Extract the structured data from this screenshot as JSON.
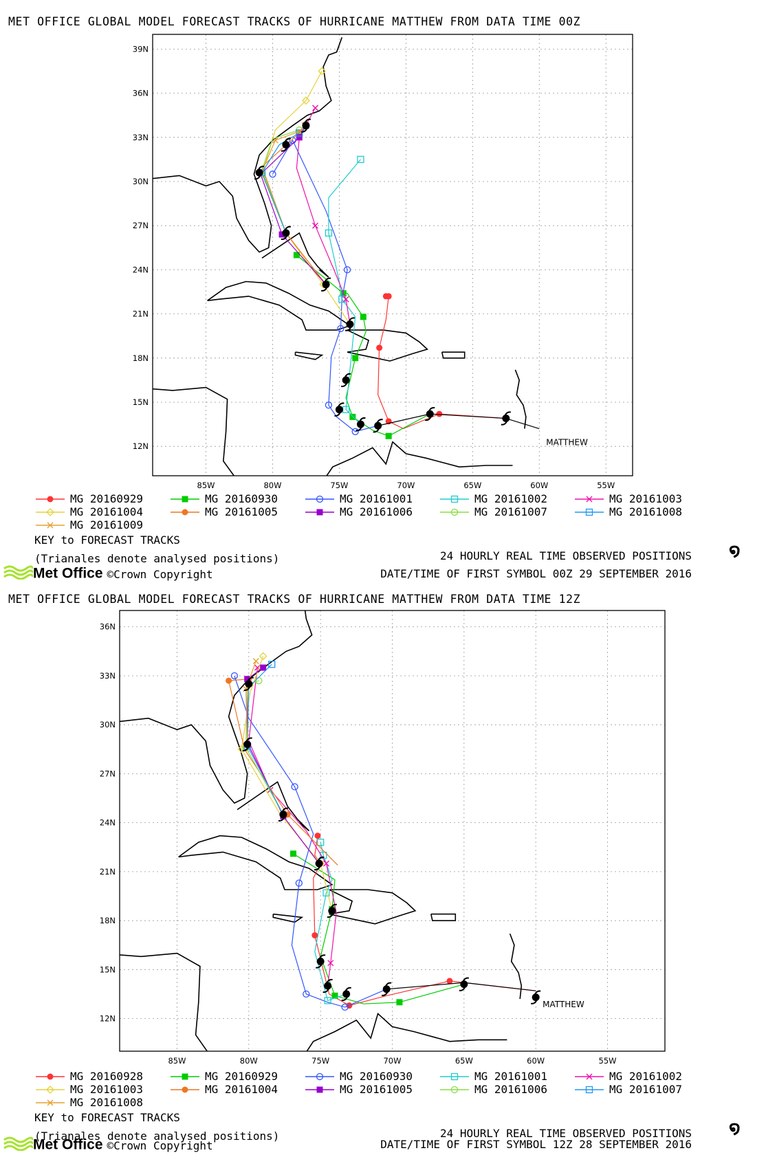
{
  "charts": [
    {
      "title": "MET OFFICE GLOBAL MODEL FORECAST TRACKS OF HURRICANE MATTHEW FROM DATA TIME 00Z",
      "key_label": "KEY to FORECAST TRACKS",
      "triangles_note": "(Trianales denote analysed positions)",
      "observed_label": "24 HOURLY REAL TIME OBSERVED POSITIONS",
      "first_symbol": "DATE/TIME OF FIRST SYMBOL 00Z 29 SEPTEMBER 2016",
      "logo_text": "Met Office",
      "copyright": "©Crown Copyright",
      "storm_label": "MATTHEW",
      "legend": [
        "MG 20160929",
        "MG 20160930",
        "MG 20161001",
        "MG 20161002",
        "MG 20161003",
        "MG 20161004",
        "MG 20161005",
        "MG 20161006",
        "MG 20161007",
        "MG 20161008",
        "MG 20161009"
      ]
    },
    {
      "title": "MET OFFICE GLOBAL MODEL FORECAST TRACKS OF HURRICANE MATTHEW FROM DATA TIME 12Z",
      "key_label": "KEY to FORECAST TRACKS",
      "triangles_note": "(Trianales denote analysed positions)",
      "observed_label": "24 HOURLY REAL TIME OBSERVED POSITIONS",
      "first_symbol": "DATE/TIME OF FIRST SYMBOL 12Z 28 SEPTEMBER 2016",
      "logo_text": "Met Office",
      "copyright": "©Crown Copyright",
      "storm_label": "MATTHEW",
      "legend": [
        "MG 20160928",
        "MG 20160929",
        "MG 20160930",
        "MG 20161001",
        "MG 20161002",
        "MG 20161003",
        "MG 20161004",
        "MG 20161005",
        "MG 20161006",
        "MG 20161007",
        "MG 20161008"
      ]
    }
  ],
  "legend_styles": [
    {
      "color": "#ff3333",
      "marker": "circle-filled"
    },
    {
      "color": "#00cc00",
      "marker": "square-filled"
    },
    {
      "color": "#3355ff",
      "marker": "circle-open"
    },
    {
      "color": "#22cccc",
      "marker": "square-open"
    },
    {
      "color": "#ee11aa",
      "marker": "x"
    },
    {
      "color": "#e6d23a",
      "marker": "diamond"
    },
    {
      "color": "#ee7722",
      "marker": "circle-filled"
    },
    {
      "color": "#9900cc",
      "marker": "square-filled"
    },
    {
      "color": "#88dd44",
      "marker": "circle-open"
    },
    {
      "color": "#2299ee",
      "marker": "square-open"
    },
    {
      "color": "#e6a030",
      "marker": "x"
    }
  ],
  "chart_data": [
    {
      "type": "scatter",
      "title": "MET OFFICE GLOBAL MODEL FORECAST TRACKS OF HURRICANE MATTHEW FROM DATA TIME 00Z",
      "xlabel": "",
      "ylabel": "",
      "xlim": [
        -89,
        -53
      ],
      "ylim": [
        10,
        40
      ],
      "x_ticks": [
        "85W",
        "80W",
        "75W",
        "70W",
        "65W",
        "60W",
        "55W"
      ],
      "y_ticks": [
        "12N",
        "15N",
        "18N",
        "21N",
        "24N",
        "27N",
        "30N",
        "33N",
        "36N",
        "39N"
      ],
      "grid": true,
      "observed": {
        "lon": [
          -62.5,
          -68.2,
          -72.1,
          -73.4,
          -75,
          -74.5,
          -74.2,
          -76,
          -79,
          -81,
          -79,
          -77.5
        ],
        "lat": [
          13.9,
          14.2,
          13.4,
          13.5,
          14.5,
          16.5,
          20.3,
          23,
          26.5,
          30.6,
          32.5,
          33.8
        ]
      },
      "analysed_track": {
        "lon": [
          -60,
          -62.5,
          -68.2,
          -72.1
        ],
        "lat": [
          13.2,
          13.9,
          14.2,
          13.4
        ]
      },
      "series": [
        {
          "name": "MG 20160929",
          "lon": [
            -62.5,
            -67.5,
            -70.2,
            -71.3,
            -72.1,
            -72,
            -71.5,
            -71.3,
            -71.5
          ],
          "lat": [
            13.9,
            14.2,
            13.2,
            13.7,
            15.5,
            18.7,
            20.6,
            22.2,
            22.2
          ]
        },
        {
          "name": "MG 20160930",
          "lon": [
            -68.2,
            -71.3,
            -72.5,
            -74,
            -74.5,
            -73.8,
            -73,
            -73.2,
            -74.4,
            -74.7,
            -78.2
          ],
          "lat": [
            14.2,
            12.7,
            13.1,
            14.0,
            15.3,
            18.0,
            19.8,
            20.8,
            22.4,
            22.4,
            25.0
          ]
        },
        {
          "name": "MG 20161001",
          "lon": [
            -72.1,
            -73.8,
            -75.2,
            -75.8,
            -75.6,
            -74.9,
            -74.8,
            -74.4,
            -76,
            -78.5,
            -80
          ],
          "lat": [
            13.4,
            13.0,
            14.0,
            14.8,
            18.1,
            20.0,
            22.0,
            24.0,
            28.0,
            32.8,
            30.5
          ]
        },
        {
          "name": "MG 20161002",
          "lon": [
            -73.4,
            -74.5,
            -73.8,
            -74.8,
            -75,
            -75.8,
            -75.8,
            -73.4
          ],
          "lat": [
            13.5,
            14.5,
            20.8,
            22.0,
            23.2,
            26.5,
            28.9,
            31.5
          ]
        },
        {
          "name": "MG 20161003",
          "lon": [
            -74.2,
            -74.5,
            -75.4,
            -76.8,
            -78.2,
            -78.0,
            -76.8
          ],
          "lat": [
            20.3,
            22.0,
            24.0,
            27.0,
            30.9,
            33.0,
            35.0
          ]
        },
        {
          "name": "MG 20161004",
          "lon": [
            -74.2,
            -76.2,
            -79,
            -80.8,
            -79.8,
            -77.5,
            -76.3
          ],
          "lat": [
            20.3,
            23.0,
            26.5,
            30.5,
            33.5,
            35.5,
            37.5
          ]
        },
        {
          "name": "MG 20161005",
          "lon": [
            -76.0,
            -79.0,
            -80.8,
            -78.0,
            -77.5
          ],
          "lat": [
            23.0,
            26.5,
            31.0,
            33.3,
            33.9
          ]
        },
        {
          "name": "MG 20161006",
          "lon": [
            -76.0,
            -79.3,
            -80.9,
            -78.0,
            -77.5
          ],
          "lat": [
            23.0,
            26.4,
            30.5,
            33.0,
            33.8
          ]
        },
        {
          "name": "MG 20161007",
          "lon": [
            -79.0,
            -80.8,
            -80.0,
            -78.0
          ],
          "lat": [
            26.5,
            30.8,
            32.9,
            33.5
          ]
        },
        {
          "name": "MG 20161008",
          "lon": [
            -79.0,
            -80.8,
            -79.5,
            -78.0
          ],
          "lat": [
            26.5,
            30.6,
            32.5,
            33.3
          ]
        },
        {
          "name": "MG 20161009",
          "lon": [
            -80.8,
            -79.8,
            -78.0,
            -77.6
          ],
          "lat": [
            30.7,
            32.8,
            33.4,
            33.8
          ]
        }
      ]
    },
    {
      "type": "scatter",
      "title": "MET OFFICE GLOBAL MODEL FORECAST TRACKS OF HURRICANE MATTHEW FROM DATA TIME 12Z",
      "xlabel": "",
      "ylabel": "",
      "xlim": [
        -89,
        -51
      ],
      "ylim": [
        10,
        37
      ],
      "x_ticks": [
        "85W",
        "80W",
        "75W",
        "70W",
        "65W",
        "60W",
        "55W"
      ],
      "y_ticks": [
        "12N",
        "15N",
        "18N",
        "21N",
        "24N",
        "27N",
        "30N",
        "33N",
        "36N"
      ],
      "grid": true,
      "observed": {
        "lon": [
          -60,
          -65,
          -70.4,
          -73.2,
          -74.5,
          -75,
          -74.2,
          -75.1,
          -77.6,
          -80.1,
          -80
        ],
        "lat": [
          13.3,
          14.1,
          13.8,
          13.5,
          14.0,
          15.5,
          18.6,
          21.5,
          24.5,
          28.8,
          32.5
        ]
      },
      "analysed_track": {
        "lon": [
          -60,
          -65,
          -70.4
        ],
        "lat": [
          13.7,
          14.2,
          13.8
        ]
      },
      "series": [
        {
          "name": "MG 20160928",
          "lon": [
            -60,
            -66,
            -70.4,
            -73,
            -74.4,
            -75.4,
            -75.5,
            -75,
            -75.4,
            -75.2
          ],
          "lat": [
            13.7,
            14.3,
            13.4,
            12.8,
            13.5,
            17.1,
            20.6,
            21.5,
            22.0,
            23.2
          ]
        },
        {
          "name": "MG 20160929",
          "lon": [
            -65,
            -69.5,
            -72,
            -74,
            -75,
            -74.2,
            -74.0,
            -76.9
          ],
          "lat": [
            14.1,
            13.0,
            12.9,
            13.4,
            15.8,
            18.7,
            20.5,
            22.1
          ]
        },
        {
          "name": "MG 20160930",
          "lon": [
            -70.4,
            -73.3,
            -74.5,
            -76,
            -77.0,
            -76.5,
            -75.5,
            -76.8,
            -80,
            -81
          ],
          "lat": [
            13.8,
            12.7,
            13.0,
            13.5,
            16.5,
            20.3,
            23.3,
            26.2,
            30.4,
            33.0
          ]
        },
        {
          "name": "MG 20161001",
          "lon": [
            -73.2,
            -74.5,
            -75.4,
            -74.6,
            -74.2,
            -74.8,
            -75.0
          ],
          "lat": [
            13.5,
            13.1,
            16.1,
            19.7,
            20.5,
            22.0,
            22.8
          ]
        },
        {
          "name": "MG 20161002",
          "lon": [
            -74.5,
            -74.3,
            -73.9,
            -74.6,
            -76.0,
            -78.5,
            -80,
            -79.4
          ],
          "lat": [
            14.0,
            15.4,
            18.5,
            21.5,
            23.5,
            26.0,
            29.0,
            33.5
          ]
        },
        {
          "name": "MG 20161003",
          "lon": [
            -74.2,
            -75,
            -77.8,
            -80.5,
            -79.9,
            -79.0
          ],
          "lat": [
            18.6,
            21.5,
            24.5,
            28.5,
            32.0,
            34.2
          ]
        },
        {
          "name": "MG 20161004",
          "lon": [
            -73.8,
            -77.3,
            -80.3,
            -81.4,
            -80.0
          ],
          "lat": [
            21.4,
            24.5,
            28.5,
            32.7,
            32.8
          ]
        },
        {
          "name": "MG 20161005",
          "lon": [
            -75.1,
            -77.6,
            -80.1,
            -80.1,
            -79.0
          ],
          "lat": [
            21.5,
            24.4,
            28.9,
            32.8,
            33.5
          ]
        },
        {
          "name": "MG 20161006",
          "lon": [
            -77.6,
            -80.2,
            -80.1,
            -79.3
          ],
          "lat": [
            24.5,
            28.6,
            32.5,
            32.7
          ]
        },
        {
          "name": "MG 20161007",
          "lon": [
            -77.6,
            -80.1,
            -80.0,
            -78.4
          ],
          "lat": [
            24.5,
            28.7,
            32.3,
            33.7
          ]
        },
        {
          "name": "MG 20161008",
          "lon": [
            -80.1,
            -80.2,
            -79.5
          ],
          "lat": [
            28.8,
            32.2,
            33.9
          ]
        }
      ]
    }
  ]
}
